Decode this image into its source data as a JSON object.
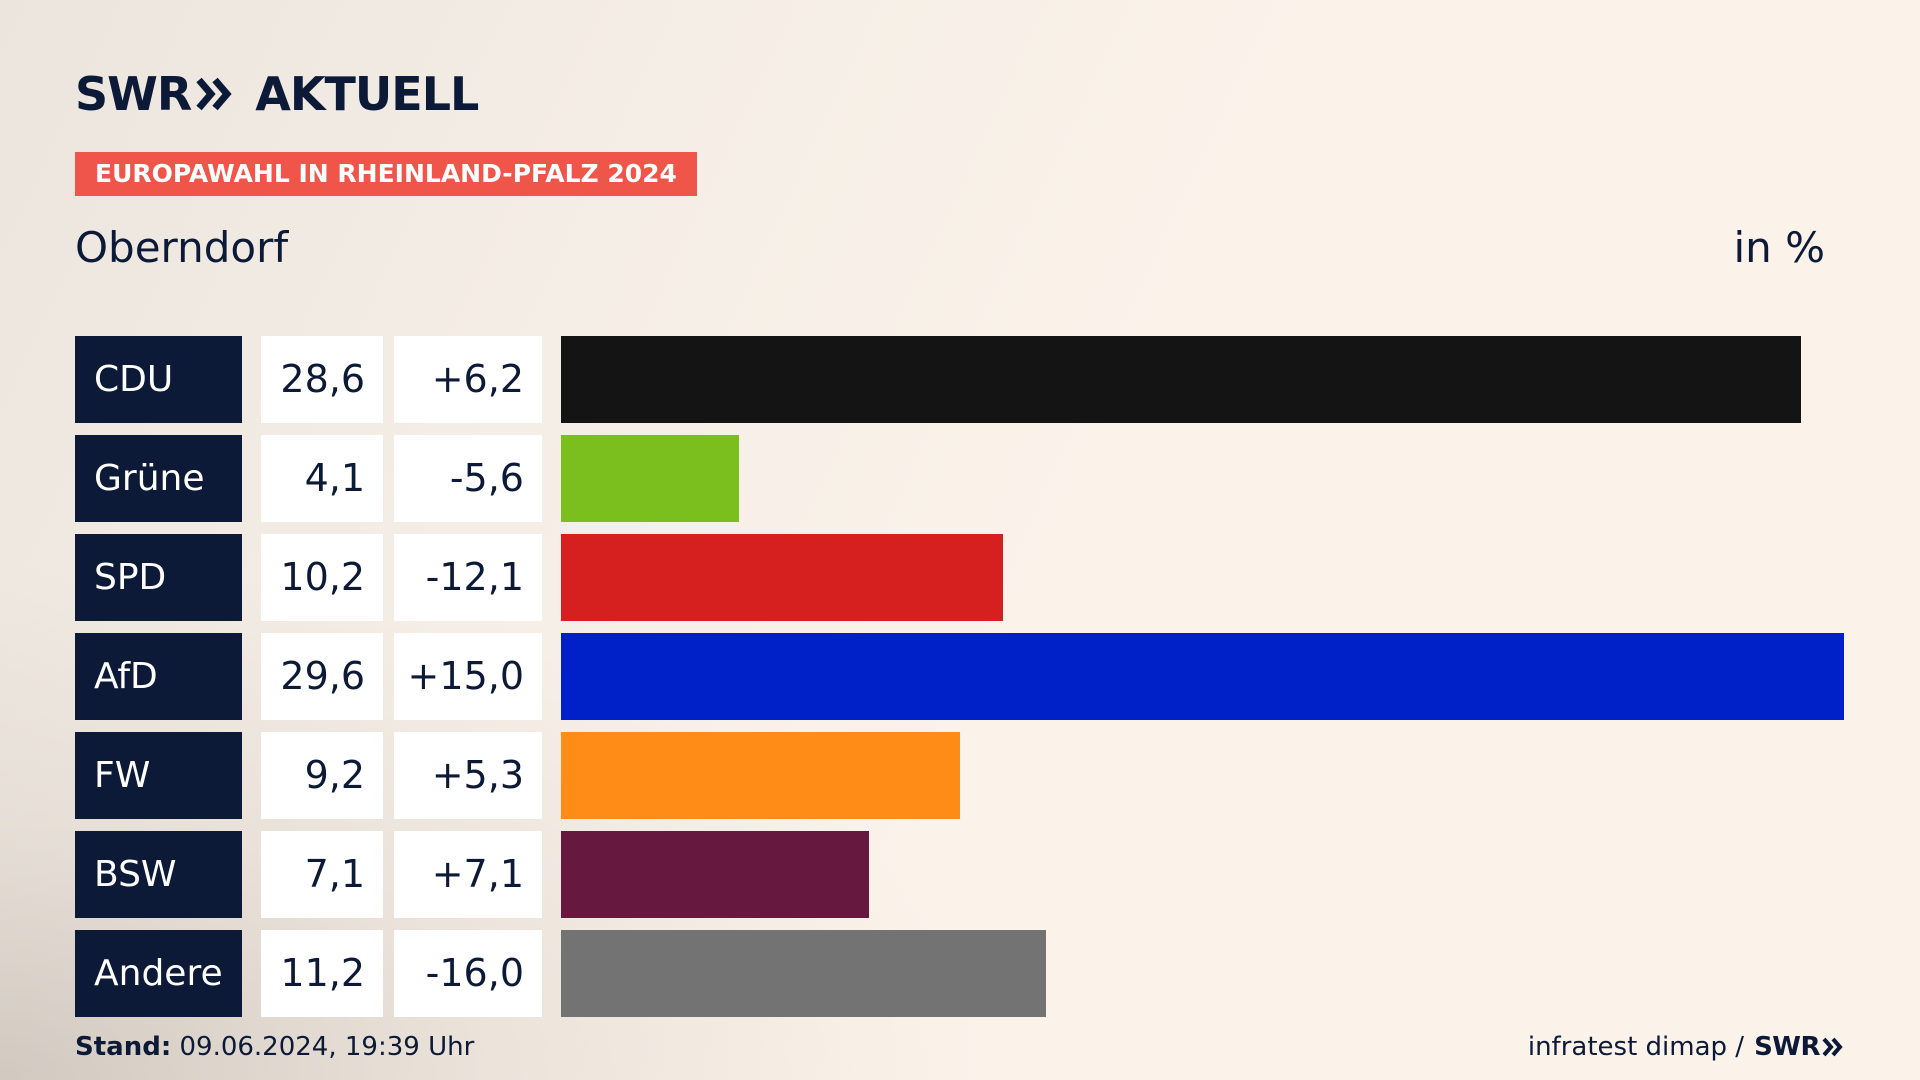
{
  "header": {
    "logo_brand": "SWR",
    "logo_suffix": "AKTUELL",
    "badge": "EUROPAWAHL IN RHEINLAND-PFALZ 2024",
    "place": "Oberndorf",
    "unit": "in %"
  },
  "colors": {
    "navy": "#0c1a38",
    "badge": "#f0554a"
  },
  "chart_data": {
    "type": "bar",
    "orientation": "horizontal",
    "title": "Oberndorf",
    "unit": "in %",
    "xlim": [
      0,
      29.6
    ],
    "categories": [
      "CDU",
      "Grüne",
      "SPD",
      "AfD",
      "FW",
      "BSW",
      "Andere"
    ],
    "values": [
      28.6,
      4.1,
      10.2,
      29.6,
      9.2,
      7.1,
      11.2
    ],
    "value_labels": [
      "28,6",
      "4,1",
      "10,2",
      "29,6",
      "9,2",
      "7,1",
      "11,2"
    ],
    "diff_labels": [
      "+6,2",
      "-5,6",
      "-12,1",
      "+15,0",
      "+5,3",
      "+7,1",
      "-16,0"
    ],
    "diffs": [
      6.2,
      -5.6,
      -12.1,
      15.0,
      5.3,
      7.1,
      -16.0
    ],
    "colors": [
      "#141414",
      "#7abf1e",
      "#d6201f",
      "#0021c8",
      "#ff8c17",
      "#66183e",
      "#737373"
    ]
  },
  "footer": {
    "stand_label": "Stand:",
    "stand_value": "09.06.2024, 19:39 Uhr",
    "source_text": "infratest dimap /",
    "source_logo": "SWR"
  }
}
